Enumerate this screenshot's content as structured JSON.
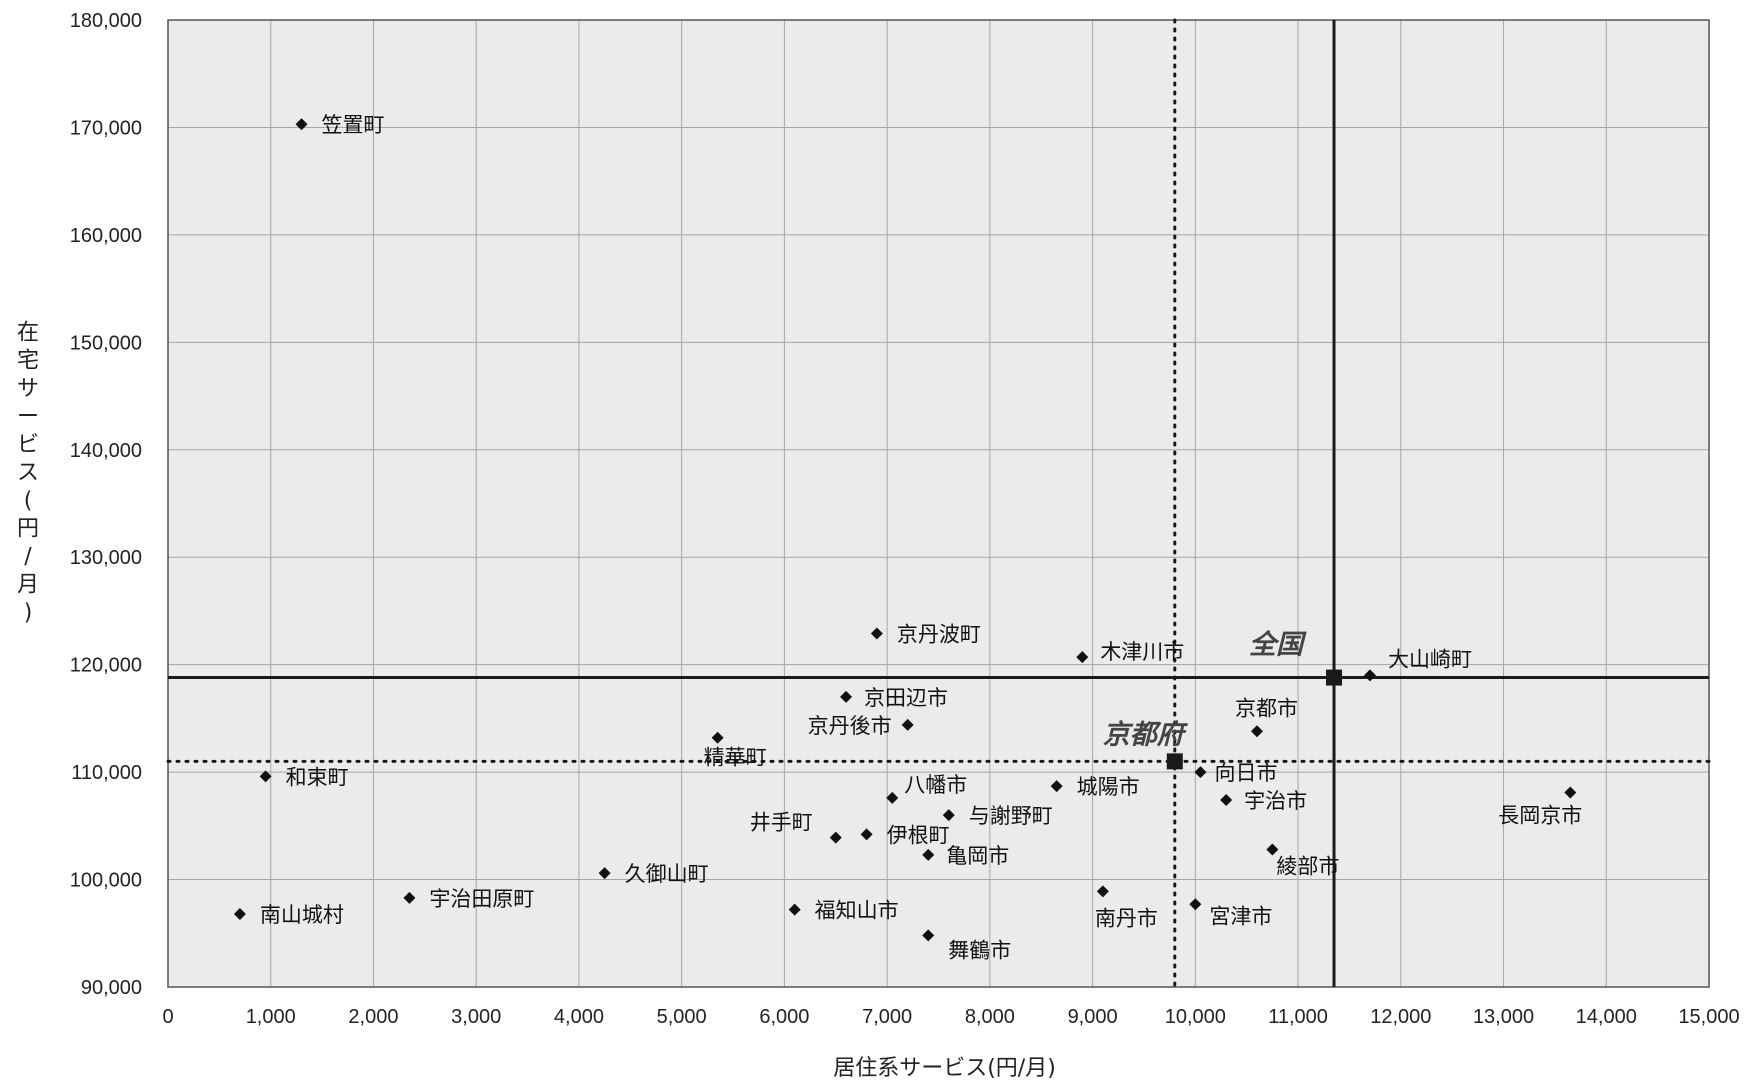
{
  "chart_data": {
    "type": "scatter",
    "title": "",
    "xlabel": "居住系サービス(円/月)",
    "ylabel_chars": [
      "在",
      "宅",
      "サ",
      "ー",
      "ビ",
      "ス",
      "(",
      "円",
      "/",
      "月",
      ")"
    ],
    "xlim": [
      0,
      15000
    ],
    "ylim": [
      90000,
      180000
    ],
    "x_ticks": [
      "0",
      "1,000",
      "2,000",
      "3,000",
      "4,000",
      "5,000",
      "6,000",
      "7,000",
      "8,000",
      "9,000",
      "10,000",
      "11,000",
      "12,000",
      "13,000",
      "14,000",
      "15,000"
    ],
    "y_ticks": [
      "90,000",
      "100,000",
      "110,000",
      "120,000",
      "130,000",
      "140,000",
      "150,000",
      "160,000",
      "170,000",
      "180,000"
    ],
    "grid": true,
    "colors": {
      "plot_bg": "#ebebeb",
      "grid": "#a6a6a6",
      "marker": "#111111",
      "reference": "#1a1a1a"
    },
    "points": [
      {
        "name": "笠置町",
        "x": 1300,
        "y": 170300
      },
      {
        "name": "京丹波町",
        "x": 6900,
        "y": 122900
      },
      {
        "name": "木津川市",
        "x": 8900,
        "y": 120700
      },
      {
        "name": "大山崎町",
        "x": 11700,
        "y": 119000
      },
      {
        "name": "京田辺市",
        "x": 6600,
        "y": 117000
      },
      {
        "name": "京丹後市",
        "x": 7200,
        "y": 114400
      },
      {
        "name": "京都市",
        "x": 10600,
        "y": 113800
      },
      {
        "name": "精華町",
        "x": 5350,
        "y": 113200
      },
      {
        "name": "向日市",
        "x": 10050,
        "y": 110000
      },
      {
        "name": "和束町",
        "x": 950,
        "y": 109600
      },
      {
        "name": "城陽市",
        "x": 8650,
        "y": 108700
      },
      {
        "name": "長岡京市",
        "x": 13650,
        "y": 108100
      },
      {
        "name": "八幡市",
        "x": 7050,
        "y": 107600
      },
      {
        "name": "宇治市",
        "x": 10300,
        "y": 107400
      },
      {
        "name": "与謝野町",
        "x": 7600,
        "y": 106000
      },
      {
        "name": "伊根町",
        "x": 6800,
        "y": 104200
      },
      {
        "name": "井手町",
        "x": 6500,
        "y": 103900
      },
      {
        "name": "綾部市",
        "x": 10750,
        "y": 102800
      },
      {
        "name": "亀岡市",
        "x": 7400,
        "y": 102300
      },
      {
        "name": "久御山町",
        "x": 4250,
        "y": 100600
      },
      {
        "name": "南丹市",
        "x": 9100,
        "y": 98900
      },
      {
        "name": "宇治田原町",
        "x": 2350,
        "y": 98300
      },
      {
        "name": "宮津市",
        "x": 10000,
        "y": 97700
      },
      {
        "name": "福知山市",
        "x": 6100,
        "y": 97200
      },
      {
        "name": "南山城村",
        "x": 700,
        "y": 96800
      },
      {
        "name": "舞鶴市",
        "x": 7400,
        "y": 94800
      }
    ],
    "reference_points": [
      {
        "name": "全国",
        "x": 11350,
        "y": 118800,
        "line_style": "solid"
      },
      {
        "name": "京都府",
        "x": 9800,
        "y": 111000,
        "line_style": "dotted"
      }
    ]
  }
}
